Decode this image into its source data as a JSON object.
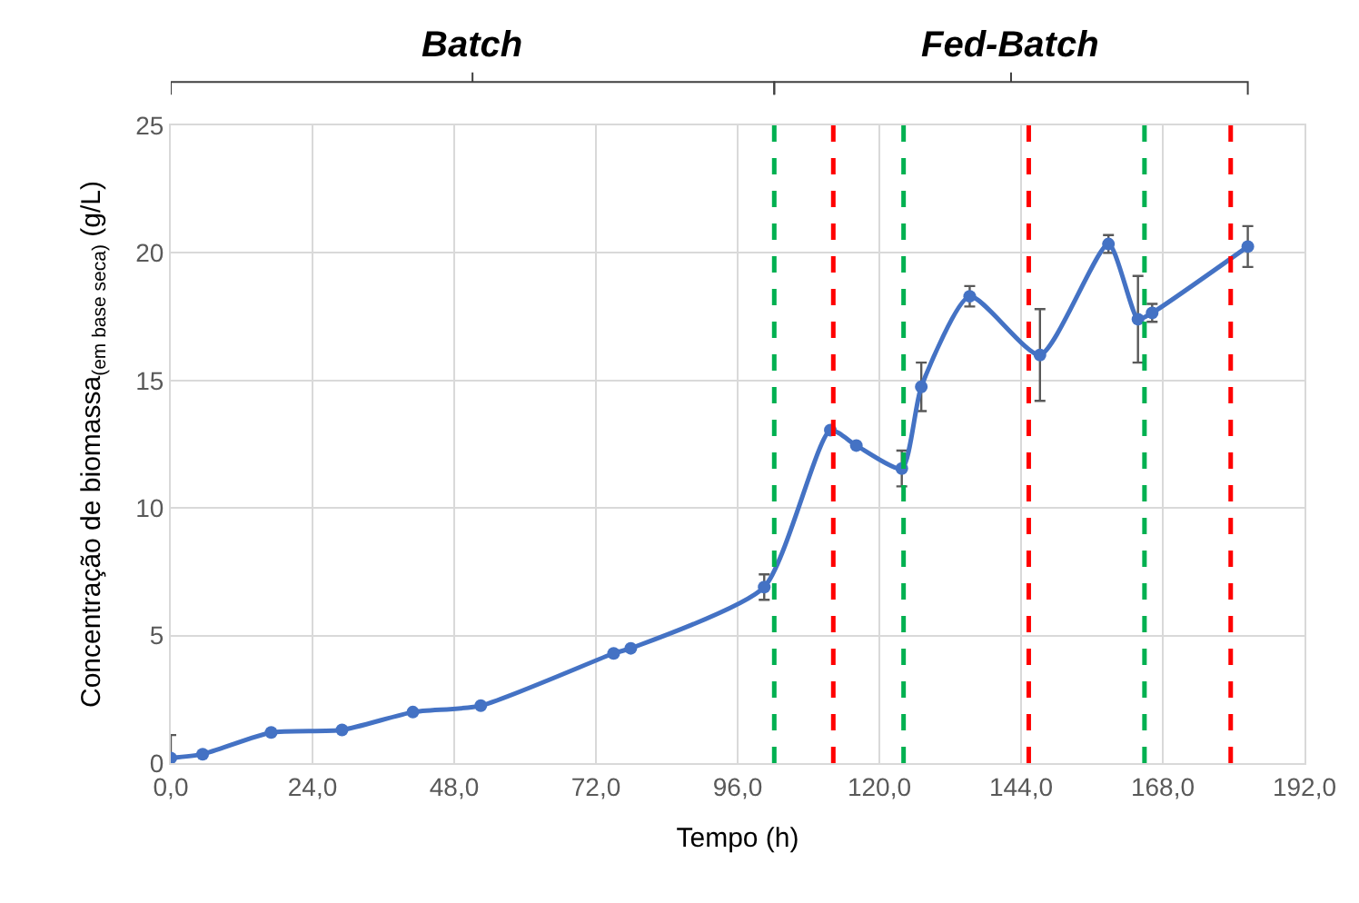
{
  "chart_data": {
    "type": "line",
    "xlabel": "Tempo (h)",
    "ylabel": "Concentração de biomassa$_{(em base seca)}$ (g/L)",
    "x": [
      0,
      5.4,
      17,
      29,
      41,
      52.5,
      75,
      77.9,
      100.5,
      111.7,
      116.1,
      123.8,
      127.1,
      135.3,
      147.2,
      158.8,
      163.8,
      166.2,
      182.4
    ],
    "series": [
      {
        "color": "#4472c4",
        "values": [
          0.2,
          0.35,
          1.2,
          1.3,
          2.0,
          2.25,
          4.3,
          4.5,
          6.9,
          13.05,
          12.45,
          11.55,
          14.75,
          18.3,
          16.0,
          20.35,
          17.4,
          17.65,
          20.25
        ],
        "errors": [
          0.9,
          null,
          null,
          null,
          null,
          null,
          null,
          null,
          0.5,
          null,
          null,
          0.7,
          0.95,
          0.4,
          1.8,
          0.35,
          1.7,
          0.35,
          0.8
        ]
      }
    ],
    "xlim": [
      0,
      192
    ],
    "ylim": [
      0,
      25
    ],
    "xticks": [
      {
        "value": 0,
        "label": "0,0"
      },
      {
        "value": 24,
        "label": "24,0"
      },
      {
        "value": 48,
        "label": "48,0"
      },
      {
        "value": 72,
        "label": "72,0"
      },
      {
        "value": 96,
        "label": "96,0"
      },
      {
        "value": 120,
        "label": "120,0"
      },
      {
        "value": 144,
        "label": "144,0"
      },
      {
        "value": 168,
        "label": "168,0"
      },
      {
        "value": 192,
        "label": "192,0"
      }
    ],
    "yticks": [
      0,
      5,
      10,
      15,
      20,
      25
    ],
    "ref_lines": [
      {
        "axis": "x",
        "value": 102.2,
        "color": "#00b050",
        "line_style": "dashed"
      },
      {
        "axis": "x",
        "value": 112.2,
        "color": "#ff0000",
        "line_style": "dashed"
      },
      {
        "axis": "x",
        "value": 124.1,
        "color": "#00b050",
        "line_style": "dashed"
      },
      {
        "axis": "x",
        "value": 145.3,
        "color": "#ff0000",
        "line_style": "dashed"
      },
      {
        "axis": "x",
        "value": 164.9,
        "color": "#00b050",
        "line_style": "dashed"
      },
      {
        "axis": "x",
        "value": 179.5,
        "color": "#ff0000",
        "line_style": "dashed"
      }
    ],
    "annotations": [
      "Batch",
      "Fed-Batch"
    ],
    "grid": true,
    "legend": false,
    "marker": "circle",
    "line_style": "solid"
  }
}
